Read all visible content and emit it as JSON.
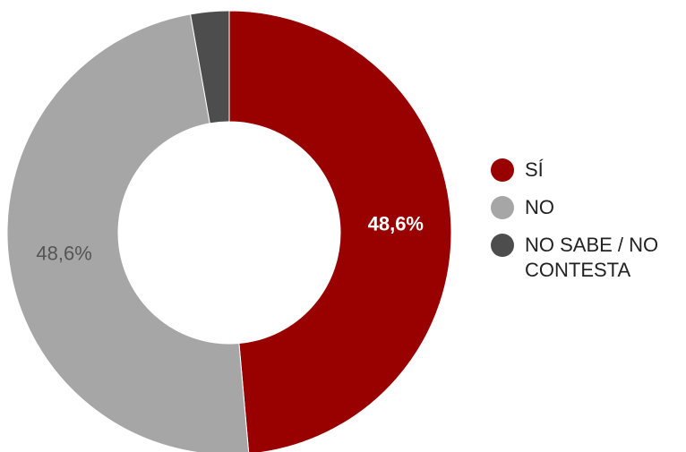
{
  "chart_data": {
    "type": "pie",
    "donut": true,
    "categories": [
      "SÍ",
      "NO",
      "NO SABE / NO CONTESTA"
    ],
    "values": [
      48.6,
      48.6,
      2.8
    ],
    "data_labels": [
      "48,6%",
      "48,6%",
      ""
    ],
    "colors": [
      "#990000",
      "#a6a6a6",
      "#4d4d4d"
    ],
    "label_colors": [
      "#ffffff",
      "#555555",
      "#ffffff"
    ],
    "legend_position": "right"
  }
}
